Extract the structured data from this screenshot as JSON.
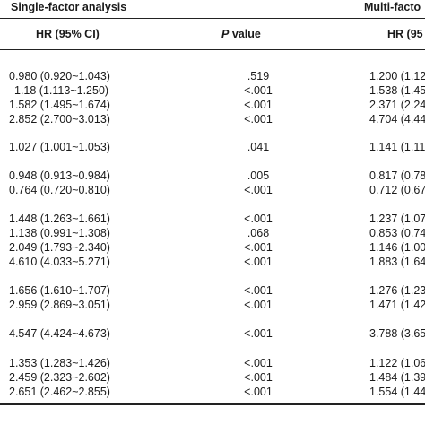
{
  "header": {
    "single_factor": "Single-factor analysis",
    "multi_factor": "Multi-facto",
    "hr_single": "HR (95% CI)",
    "p_italic": "P",
    "p_rest": " value",
    "hr_multi": "HR (95"
  },
  "rows": [
    {
      "hr": "0.980 (0.920~1.043)",
      "p": ".519",
      "mhr": "1.200 (1.12"
    },
    {
      "hr": "1.18 (1.113~1.250)",
      "p": "<.001",
      "mhr": "1.538 (1.45"
    },
    {
      "hr": "1.582 (1.495~1.674)",
      "p": "<.001",
      "mhr": "2.371 (2.24"
    },
    {
      "hr": "2.852 (2.700~3.013)",
      "p": "<.001",
      "mhr": "4.704 (4.44"
    },
    {
      "hr": "1.027 (1.001~1.053)",
      "p": ".041",
      "mhr": "1.141 (1.11"
    },
    {
      "hr": "0.948 (0.913~0.984)",
      "p": ".005",
      "mhr": "0.817 (0.78"
    },
    {
      "hr": "0.764 (0.720~0.810)",
      "p": "<.001",
      "mhr": "0.712 (0.67"
    },
    {
      "hr": "1.448 (1.263~1.661)",
      "p": "<.001",
      "mhr": "1.237 (1.07"
    },
    {
      "hr": "1.138 (0.991~1.308)",
      "p": ".068",
      "mhr": "0.853 (0.74"
    },
    {
      "hr": "2.049 (1.793~2.340)",
      "p": "<.001",
      "mhr": "1.146 (1.00"
    },
    {
      "hr": "4.610 (4.033~5.271)",
      "p": "<.001",
      "mhr": "1.883 (1.64"
    },
    {
      "hr": "1.656 (1.610~1.707)",
      "p": "<.001",
      "mhr": "1.276 (1.23"
    },
    {
      "hr": "2.959 (2.869~3.051)",
      "p": "<.001",
      "mhr": "1.471 (1.42"
    },
    {
      "hr": "4.547 (4.424~4.673)",
      "p": "<.001",
      "mhr": "3.788 (3.65"
    },
    {
      "hr": "1.353 (1.283~1.426)",
      "p": "<.001",
      "mhr": "1.122 (1.06"
    },
    {
      "hr": "2.459 (2.323~2.602)",
      "p": "<.001",
      "mhr": "1.484 (1.39"
    },
    {
      "hr": "2.651 (2.462~2.855)",
      "p": "<.001",
      "mhr": "1.554 (1.44"
    }
  ]
}
